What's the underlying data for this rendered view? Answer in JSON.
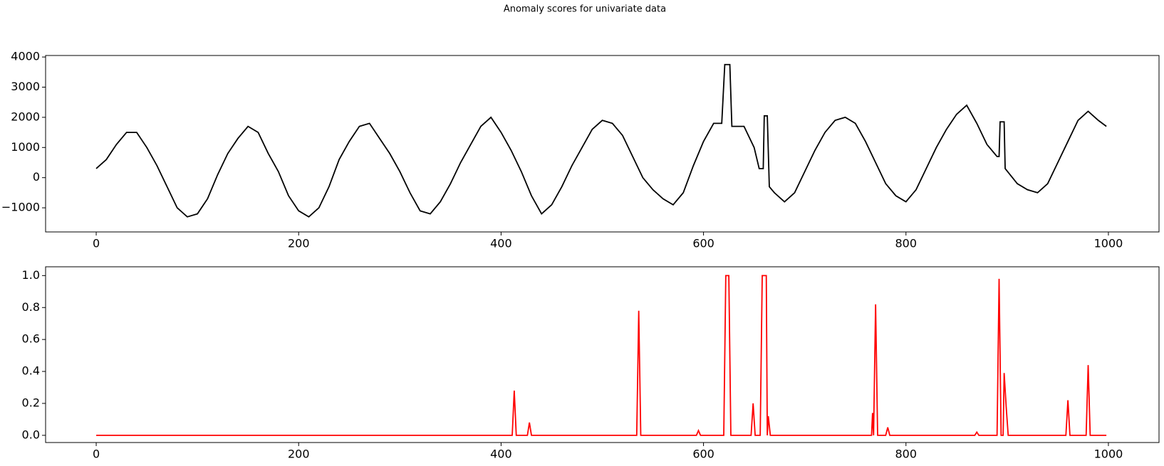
{
  "chart_data": [
    {
      "type": "line",
      "title": "Anomaly scores for univariate data",
      "x": [
        0,
        10,
        20,
        30,
        40,
        50,
        60,
        70,
        80,
        90,
        100,
        110,
        120,
        130,
        140,
        150,
        160,
        170,
        180,
        190,
        200,
        210,
        220,
        230,
        240,
        250,
        260,
        270,
        280,
        290,
        300,
        310,
        320,
        330,
        340,
        350,
        360,
        370,
        380,
        390,
        400,
        410,
        420,
        430,
        440,
        450,
        460,
        470,
        480,
        490,
        500,
        510,
        520,
        530,
        540,
        550,
        560,
        570,
        580,
        590,
        600,
        610,
        618,
        621,
        626,
        628,
        640,
        650,
        655,
        659,
        660,
        663,
        665,
        670,
        680,
        690,
        700,
        710,
        720,
        730,
        740,
        750,
        760,
        770,
        780,
        790,
        800,
        810,
        820,
        830,
        840,
        850,
        860,
        870,
        880,
        890,
        892,
        893,
        897,
        898,
        910,
        920,
        930,
        940,
        950,
        960,
        970,
        980,
        990,
        998
      ],
      "series": [
        {
          "color": "#000000",
          "values": [
            300,
            600,
            1100,
            1500,
            1500,
            1000,
            400,
            -300,
            -1000,
            -1300,
            -1200,
            -700,
            100,
            800,
            1300,
            1700,
            1500,
            800,
            200,
            -600,
            -1100,
            -1300,
            -1000,
            -300,
            600,
            1200,
            1700,
            1800,
            1300,
            800,
            200,
            -500,
            -1100,
            -1200,
            -800,
            -200,
            500,
            1100,
            1700,
            2000,
            1500,
            900,
            200,
            -600,
            -1200,
            -900,
            -300,
            400,
            1000,
            1600,
            1900,
            1800,
            1400,
            700,
            0,
            -400,
            -700,
            -900,
            -500,
            400,
            1200,
            1800,
            1800,
            3750,
            3750,
            1700,
            1700,
            1000,
            300,
            300,
            2050,
            2050,
            -300,
            -500,
            -800,
            -500,
            200,
            900,
            1500,
            1900,
            2000,
            1800,
            1200,
            500,
            -200,
            -600,
            -800,
            -400,
            300,
            1000,
            1600,
            2100,
            2400,
            1800,
            1100,
            700,
            700,
            1850,
            1850,
            300,
            -200,
            -400,
            -500,
            -200,
            500,
            1200,
            1900,
            2200,
            1900,
            1700
          ]
        }
      ],
      "xlim": [
        -50,
        1050
      ],
      "ylim": [
        -1800,
        4050
      ],
      "xticks": [
        0,
        200,
        400,
        600,
        800,
        1000
      ],
      "yticks": [
        {
          "value": -1000,
          "label": "−1000"
        },
        0,
        1000,
        2000,
        3000,
        4000
      ]
    },
    {
      "type": "line",
      "x": [
        0,
        411,
        413,
        415,
        426,
        428,
        430,
        534,
        536,
        538,
        593,
        595,
        597,
        620,
        622,
        625,
        627,
        647,
        649,
        651,
        656,
        658,
        662,
        663,
        664,
        666,
        766,
        767,
        768,
        770,
        772,
        780,
        782,
        784,
        868,
        870,
        872,
        890,
        892,
        894,
        896,
        897,
        899,
        901,
        958,
        960,
        962,
        978,
        980,
        982,
        998
      ],
      "series": [
        {
          "color": "#ff0000",
          "values": [
            0,
            0,
            0.28,
            0,
            0,
            0.08,
            0,
            0,
            0.78,
            0,
            0,
            0.03,
            0,
            0,
            1,
            1,
            0,
            0,
            0.2,
            0,
            0,
            1,
            1,
            0,
            0.12,
            0,
            0,
            0.14,
            0,
            0.82,
            0,
            0,
            0.05,
            0,
            0,
            0.02,
            0,
            0,
            0.98,
            0,
            0,
            0.39,
            0.18,
            0,
            0,
            0.22,
            0,
            0,
            0.44,
            0,
            0
          ]
        }
      ],
      "xlim": [
        -50,
        1050
      ],
      "ylim": [
        -0.045,
        1.055
      ],
      "xticks": [
        0,
        200,
        400,
        600,
        800,
        1000
      ],
      "yticks": [
        {
          "value": 0,
          "label": "0.0"
        },
        {
          "value": 0.2,
          "label": "0.2"
        },
        {
          "value": 0.4,
          "label": "0.4"
        },
        {
          "value": 0.6,
          "label": "0.6"
        },
        {
          "value": 0.8,
          "label": "0.8"
        },
        {
          "value": 1,
          "label": "1.0"
        }
      ]
    }
  ]
}
